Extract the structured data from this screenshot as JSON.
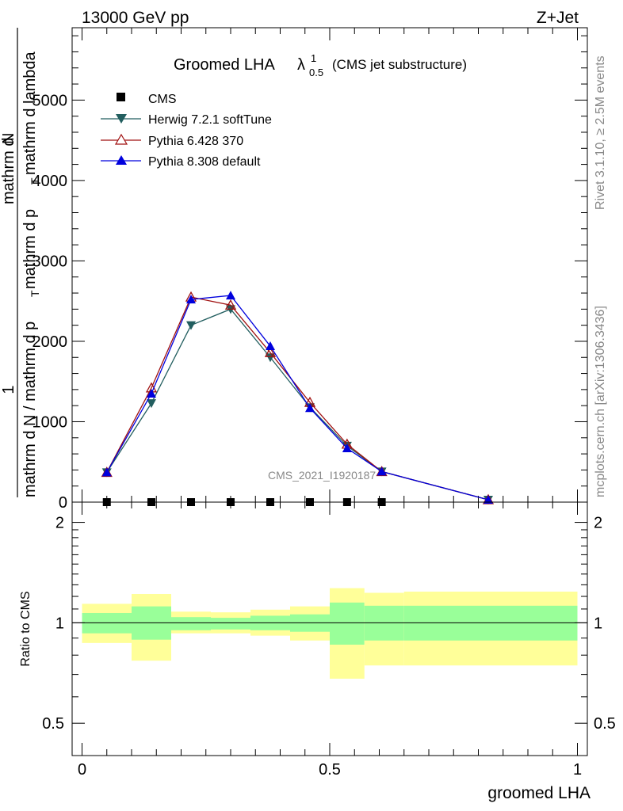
{
  "header": {
    "energy": "13000 GeV pp",
    "process": "Z+Jet"
  },
  "side": {
    "rivet": "Rivet 3.1.10, ≥ 2.5M events",
    "mcplots": "mcplots.cern.ch [arXiv:1306.3436]"
  },
  "chart_data": [
    {
      "type": "line",
      "title_main": "Groomed LHA",
      "title_lambda": "λ",
      "title_sup": "1",
      "title_sub": "0.5",
      "title_note": "(CMS jet substructure)",
      "ylabel_top": "1",
      "ylabel_num": "mathrm d",
      "ylabel_num2": "N",
      "ylabel_den": "mathrm d p",
      "ylabel_den_sub": "T",
      "ylabel_den2": "mathrm d lambda",
      "ylabel_bottom": "mathrm d N / mathrm d p",
      "ylabel_bottom_sub": "T",
      "ylim": [
        0,
        5900
      ],
      "xlim": [
        -0.02,
        1.02
      ],
      "yticks": [
        "0",
        "1000",
        "2000",
        "3000",
        "4000",
        "5000"
      ],
      "watermark": "CMS_2021_I1920187",
      "legend_position": "top-left",
      "series": [
        {
          "name": "CMS",
          "color": "#000000",
          "marker": "square",
          "x": [
            0.05,
            0.14,
            0.22,
            0.3,
            0.38,
            0.46,
            0.535,
            0.605
          ],
          "y": [
            0,
            0,
            0,
            0,
            0,
            0,
            0,
            0
          ]
        },
        {
          "name": "Herwig 7.2.1 softTune",
          "color": "#225e5f",
          "marker": "triangle-down",
          "x": [
            0.05,
            0.14,
            0.22,
            0.3,
            0.38,
            0.46,
            0.535,
            0.605,
            0.82
          ],
          "y": [
            370,
            1230,
            2200,
            2400,
            1800,
            1180,
            700,
            380,
            30
          ]
        },
        {
          "name": "Pythia 6.428 370",
          "color": "#a01010",
          "marker": "triangle-up-open",
          "x": [
            0.05,
            0.14,
            0.22,
            0.3,
            0.38,
            0.46,
            0.535,
            0.605,
            0.82
          ],
          "y": [
            370,
            1420,
            2550,
            2450,
            1860,
            1240,
            720,
            380,
            30
          ]
        },
        {
          "name": "Pythia 8.308 default",
          "color": "#0000dd",
          "marker": "triangle-up",
          "x": [
            0.05,
            0.14,
            0.22,
            0.3,
            0.38,
            0.46,
            0.535,
            0.605,
            0.82
          ],
          "y": [
            370,
            1350,
            2520,
            2570,
            1940,
            1170,
            670,
            380,
            30
          ]
        }
      ]
    },
    {
      "type": "area",
      "ylabel": "Ratio to CMS",
      "xlabel": "groomed LHA",
      "ylim": [
        0.4,
        2.3
      ],
      "xlim": [
        -0.02,
        1.02
      ],
      "yticks": [
        "0.5",
        "1",
        "2"
      ],
      "xticks": [
        "0",
        "0.5",
        "1"
      ],
      "reference": 1,
      "bins": [
        {
          "x0": 0.0,
          "x1": 0.1,
          "inner": [
            0.93,
            1.07
          ],
          "outer": [
            0.87,
            1.14
          ]
        },
        {
          "x0": 0.1,
          "x1": 0.18,
          "inner": [
            0.89,
            1.12
          ],
          "outer": [
            0.77,
            1.22
          ]
        },
        {
          "x0": 0.18,
          "x1": 0.26,
          "inner": [
            0.95,
            1.04
          ],
          "outer": [
            0.93,
            1.08
          ]
        },
        {
          "x0": 0.26,
          "x1": 0.34,
          "inner": [
            0.955,
            1.035
          ],
          "outer": [
            0.93,
            1.075
          ]
        },
        {
          "x0": 0.34,
          "x1": 0.42,
          "inner": [
            0.95,
            1.05
          ],
          "outer": [
            0.915,
            1.095
          ]
        },
        {
          "x0": 0.42,
          "x1": 0.5,
          "inner": [
            0.94,
            1.06
          ],
          "outer": [
            0.885,
            1.12
          ]
        },
        {
          "x0": 0.5,
          "x1": 0.57,
          "inner": [
            0.86,
            1.15
          ],
          "outer": [
            0.68,
            1.27
          ]
        },
        {
          "x0": 0.57,
          "x1": 0.65,
          "inner": [
            0.885,
            1.125
          ],
          "outer": [
            0.745,
            1.23
          ]
        },
        {
          "x0": 0.65,
          "x1": 1.0,
          "inner": [
            0.885,
            1.125
          ],
          "outer": [
            0.745,
            1.24
          ]
        }
      ],
      "colors": {
        "inner": "#99ff99",
        "outer": "#ffff99"
      }
    }
  ]
}
